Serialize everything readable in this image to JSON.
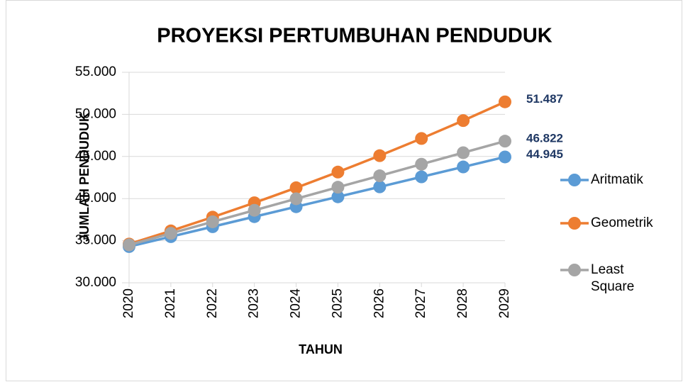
{
  "chart_data": {
    "type": "line",
    "title": "PROYEKSI PERTUMBUHAN PENDUDUK",
    "x_label": "TAHUN",
    "y_label": "JUMLAH PENDUDUK",
    "categories": [
      "2020",
      "2021",
      "2022",
      "2023",
      "2024",
      "2025",
      "2026",
      "2027",
      "2028",
      "2029"
    ],
    "series": [
      {
        "name": "Aritmatik",
        "color": "#5b9bd5",
        "values": [
          34300,
          35480,
          36660,
          37850,
          39030,
          40210,
          41390,
          42580,
          43760,
          44945
        ],
        "value_labels": [
          null,
          null,
          null,
          null,
          null,
          null,
          null,
          null,
          null,
          "44.945"
        ]
      },
      {
        "name": "Geometrik",
        "color": "#ed7d31",
        "values": [
          34600,
          36163,
          37795,
          39502,
          41286,
          43150,
          45098,
          47135,
          49264,
          51487
        ],
        "value_labels": [
          null,
          null,
          null,
          null,
          null,
          null,
          null,
          null,
          null,
          "51.487"
        ]
      },
      {
        "name": "Least Square",
        "color": "#a5a5a5",
        "values": [
          34500,
          35870,
          37240,
          38610,
          39980,
          41350,
          42710,
          44080,
          45450,
          46822
        ],
        "value_labels": [
          null,
          null,
          null,
          null,
          null,
          null,
          null,
          null,
          null,
          "46.822"
        ]
      }
    ],
    "ylim": [
      30000,
      55000
    ],
    "yticks": [
      {
        "value": 30000,
        "label": "30.000"
      },
      {
        "value": 35000,
        "label": "35.000"
      },
      {
        "value": 40000,
        "label": "40.000"
      },
      {
        "value": 45000,
        "label": "45.000"
      },
      {
        "value": 50000,
        "label": "50.000"
      },
      {
        "value": 55000,
        "label": "55.000"
      }
    ],
    "grid": true,
    "legend": "right"
  }
}
